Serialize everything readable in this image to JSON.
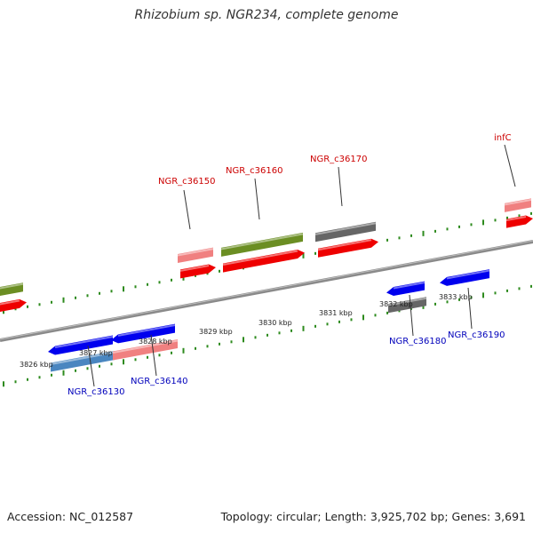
{
  "title": "Rhizobium sp. NGR234, complete genome",
  "footer": {
    "accession": "Accession: NC_012587",
    "topology": "Topology: circular; Length: 3,925,702 bp; Genes: 3,691"
  },
  "colors": {
    "backbone": "#8a8a8a",
    "tick": "#2e8b1e",
    "label_top": "#cc0000",
    "label_bottom": "#0000bb",
    "leader": "#333333",
    "cds_fwd": "#ee0000",
    "cds_rev": "#0000ee",
    "gene_red": "#ee0000",
    "gene_pink": "#f08080",
    "gene_blue": "#0000ee",
    "gene_steel": "#4a86c0",
    "gene_olive": "#6b8e23",
    "gene_gray": "#666666"
  },
  "kbp_labels": [
    "3826 kbp",
    "3827 kbp",
    "3828 kbp",
    "3829 kbp",
    "3830 kbp",
    "3831 kbp",
    "3832 kbp",
    "3833 kbp"
  ],
  "top_labels": [
    "NGR_c36150",
    "NGR_c36160",
    "NGR_c36170",
    "infC"
  ],
  "bottom_labels": [
    "NGR_c36130",
    "NGR_c36140",
    "NGR_c36180",
    "NGR_c36190"
  ]
}
